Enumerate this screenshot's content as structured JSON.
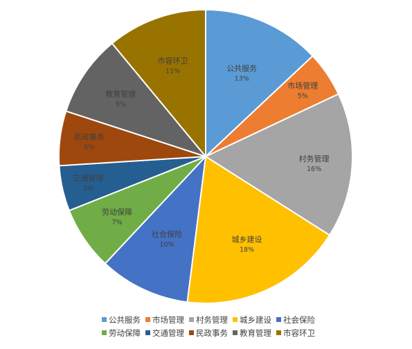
{
  "chart_data": {
    "type": "pie",
    "title": "",
    "legend_position": "bottom",
    "series": [
      {
        "name": "公共服务",
        "percent_label": "13%",
        "value": 13,
        "color": "#5B9BD5"
      },
      {
        "name": "市场管理",
        "percent_label": "5%",
        "value": 5,
        "color": "#ED7D31"
      },
      {
        "name": "村务管理",
        "percent_label": "16%",
        "value": 16,
        "color": "#A5A5A5"
      },
      {
        "name": "城乡建设",
        "percent_label": "18%",
        "value": 18,
        "color": "#FFC000"
      },
      {
        "name": "社会保险",
        "percent_label": "10%",
        "value": 10,
        "color": "#4472C4"
      },
      {
        "name": "劳动保障",
        "percent_label": "7%",
        "value": 7,
        "color": "#70AD47"
      },
      {
        "name": "交通管理",
        "percent_label": "5%",
        "value": 5,
        "color": "#255E91"
      },
      {
        "name": "民政事务",
        "percent_label": "6%",
        "value": 6,
        "color": "#9E480E"
      },
      {
        "name": "教育管理",
        "percent_label": "9%",
        "value": 9,
        "color": "#636363"
      },
      {
        "name": "市容环卫",
        "percent_label": "11%",
        "value": 11,
        "color": "#997300"
      }
    ]
  }
}
